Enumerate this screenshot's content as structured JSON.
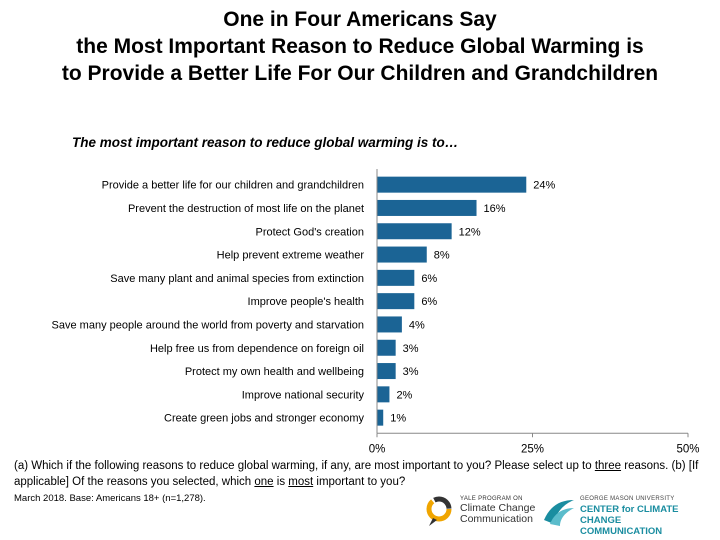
{
  "title_lines": [
    "One in Four Americans Say",
    "the Most Important Reason to Reduce Global Warming is",
    "to Provide a Better Life For Our Children and Grandchildren"
  ],
  "subtitle": "The most important reason to reduce global warming is to…",
  "footnote": {
    "p1": "(a) Which if the following reasons to reduce global warming, if any, are most important to you? Please select up to ",
    "u1": "three",
    "p2": " reasons. (b) [If applicable] Of the reasons you selected, which ",
    "u2": "one",
    "p3": " is ",
    "u3": "most",
    "p4": " important to you?"
  },
  "meta": "March 2018. Base: Americans 18+ (n=1,278).",
  "logos": {
    "left_small": "YALE PROGRAM ON",
    "left_big_1": "Climate Change",
    "left_big_2": "Communication",
    "right_small": "GEORGE MASON UNIVERSITY",
    "right_big_1": "CENTER for CLIMATE CHANGE",
    "right_big_2": "COMMUNICATION"
  },
  "colors": {
    "bar": "#1b6495",
    "yale_ring": "#f0a500",
    "gmu_teal": "#1a8da0"
  },
  "chart_data": {
    "type": "bar",
    "orientation": "horizontal",
    "categories": [
      "Provide a better life for our children and grandchildren",
      "Prevent the destruction of most life on the planet",
      "Protect God's creation",
      "Help prevent extreme weather",
      "Save many plant and animal species from extinction",
      "Improve people's health",
      "Save many people around the world from poverty and starvation",
      "Help free us from dependence on foreign oil",
      "Protect my own health and wellbeing",
      "Improve national security",
      "Create green jobs and stronger economy"
    ],
    "values": [
      24,
      16,
      12,
      8,
      6,
      6,
      4,
      3,
      3,
      2,
      1
    ],
    "value_labels": [
      "24%",
      "16%",
      "12%",
      "8%",
      "6%",
      "6%",
      "4%",
      "3%",
      "3%",
      "2%",
      "1%"
    ],
    "xlim": [
      0,
      50
    ],
    "xticks": [
      0,
      25,
      50
    ],
    "xtick_labels": [
      "0%",
      "25%",
      "50%"
    ],
    "grid": false
  }
}
